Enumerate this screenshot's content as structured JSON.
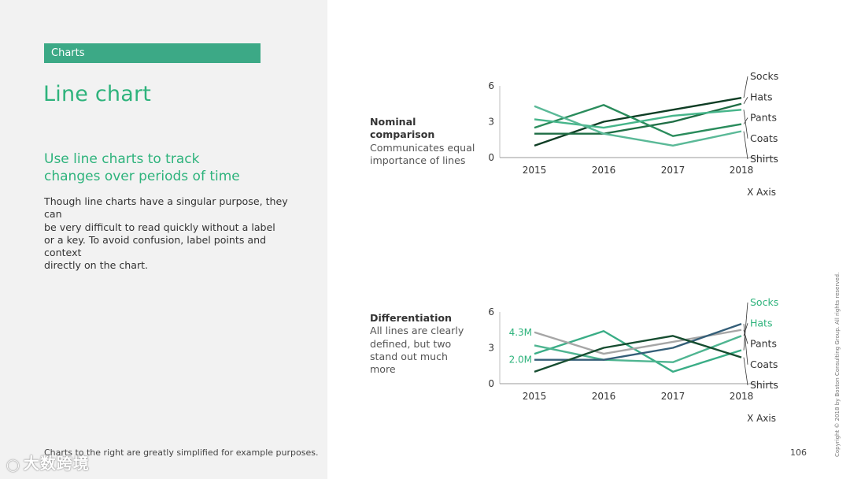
{
  "section": "Charts",
  "title": "Line chart",
  "subtitle": "Use line charts to track\nchanges over periods of time",
  "body": "Though line charts have a singular purpose, they can\nbe very difficult to read quickly without a label\nor a key. To avoid confusion, label points and context\ndirectly on the chart.",
  "footnote": "Charts to the right are greatly simplified for example purposes.",
  "watermark": "大数跨境",
  "copyright": "Copyright © 2018 by Boston Consulting Group. All rights reserved.",
  "page_number": "106",
  "charts": [
    {
      "heading": "Nominal comparison",
      "description": "Communicates equal importance of lines"
    },
    {
      "heading": "Differentiation",
      "description": "All lines are clearly defined, but two stand out much more"
    }
  ],
  "colors": {
    "accent": "#2eb37c",
    "tag_bg": "#3ca986",
    "panel_bg": "#f2f2f2"
  },
  "chart_data": [
    {
      "type": "line",
      "title": "Nominal comparison",
      "xlabel": "X Axis",
      "ylabel": "",
      "categories": [
        "2015",
        "2016",
        "2017",
        "2018"
      ],
      "yticks": [
        0,
        3,
        6
      ],
      "ylim": [
        0,
        6
      ],
      "series": [
        {
          "name": "Socks",
          "values": [
            1.0,
            3.0,
            4.0,
            5.0
          ],
          "color": "#0e3d24",
          "label_color": "#333333"
        },
        {
          "name": "Hats",
          "values": [
            2.0,
            2.0,
            3.0,
            4.5
          ],
          "color": "#1f6e45",
          "label_color": "#333333"
        },
        {
          "name": "Pants",
          "values": [
            2.5,
            4.4,
            1.8,
            2.8
          ],
          "color": "#2a8c5c",
          "label_color": "#333333"
        },
        {
          "name": "Coats",
          "values": [
            3.2,
            2.5,
            3.5,
            4.0
          ],
          "color": "#46b58a",
          "label_color": "#333333"
        },
        {
          "name": "Shirts",
          "values": [
            4.3,
            2.0,
            1.0,
            2.2
          ],
          "color": "#5ab997",
          "label_color": "#333333"
        }
      ]
    },
    {
      "type": "line",
      "title": "Differentiation",
      "xlabel": "X Axis",
      "ylabel": "",
      "categories": [
        "2015",
        "2016",
        "2017",
        "2018"
      ],
      "yticks": [
        0,
        3,
        6
      ],
      "ylim": [
        0,
        6
      ],
      "start_labels": [
        {
          "text": "4.3M",
          "value": 4.3
        },
        {
          "text": "2.0M",
          "value": 2.0
        }
      ],
      "series": [
        {
          "name": "Socks",
          "values": [
            2.5,
            4.4,
            1.0,
            2.8
          ],
          "color": "#3aad86",
          "label_color": "#2eb37c"
        },
        {
          "name": "Hats",
          "values": [
            3.2,
            2.0,
            1.8,
            4.0
          ],
          "color": "#4fb591",
          "label_color": "#2eb37c"
        },
        {
          "name": "Pants",
          "values": [
            4.3,
            2.5,
            3.5,
            4.5
          ],
          "color": "#a6a6a6",
          "label_color": "#333333"
        },
        {
          "name": "Coats",
          "values": [
            2.0,
            2.0,
            3.0,
            5.0
          ],
          "color": "#345e78",
          "label_color": "#333333"
        },
        {
          "name": "Shirts",
          "values": [
            1.0,
            3.0,
            4.0,
            2.2
          ],
          "color": "#164d30",
          "label_color": "#333333"
        }
      ]
    }
  ]
}
